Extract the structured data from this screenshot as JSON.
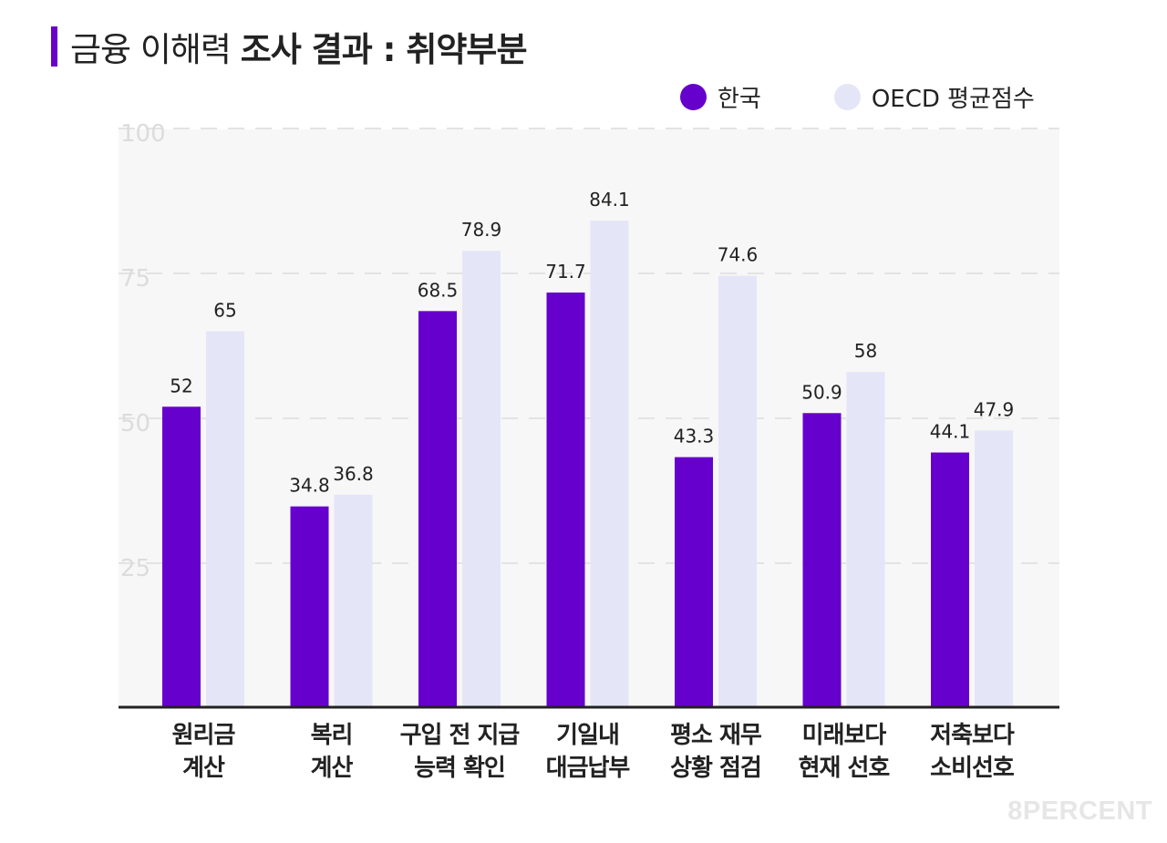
{
  "header": {
    "title_light": "금융 이해력",
    "title_bold": "조사 결과 : 취약부분"
  },
  "legend": [
    {
      "label": "한국",
      "color": "#6600cc"
    },
    {
      "label": "OECD 평균점수",
      "color": "#e5e5f8"
    }
  ],
  "watermark": "8PERCENT",
  "chart_data": {
    "type": "bar",
    "title": "금융 이해력 조사 결과 : 취약부분",
    "categories": [
      [
        "원리금",
        "계산"
      ],
      [
        "복리",
        "계산"
      ],
      [
        "구입 전 지급",
        "능력 확인"
      ],
      [
        "기일내",
        "대금납부"
      ],
      [
        "평소 재무",
        "상황 점검"
      ],
      [
        "미래보다",
        "현재 선호"
      ],
      [
        "저축보다",
        "소비선호"
      ]
    ],
    "series": [
      {
        "name": "한국",
        "color": "#6600cc",
        "values": [
          52,
          34.8,
          68.5,
          71.7,
          43.3,
          50.9,
          44.1
        ],
        "labels": [
          "52",
          "34.8",
          "68.5",
          "71.7",
          "43.3",
          "50.9",
          "44.1"
        ]
      },
      {
        "name": "OECD 평균점수",
        "color": "#e5e5f8",
        "values": [
          65,
          36.8,
          78.9,
          84.1,
          74.6,
          58,
          47.9
        ],
        "labels": [
          "65",
          "36.8",
          "78.9",
          "84.1",
          "74.6",
          "58",
          "47.9"
        ]
      }
    ],
    "y_ticks": [
      25,
      50,
      75,
      100
    ],
    "y_tick_labels": [
      "25",
      "50",
      "75",
      "100"
    ],
    "ylim": [
      0,
      100
    ],
    "grid": true,
    "legend_position": "top-right",
    "plot_background": "#f7f7f7"
  }
}
